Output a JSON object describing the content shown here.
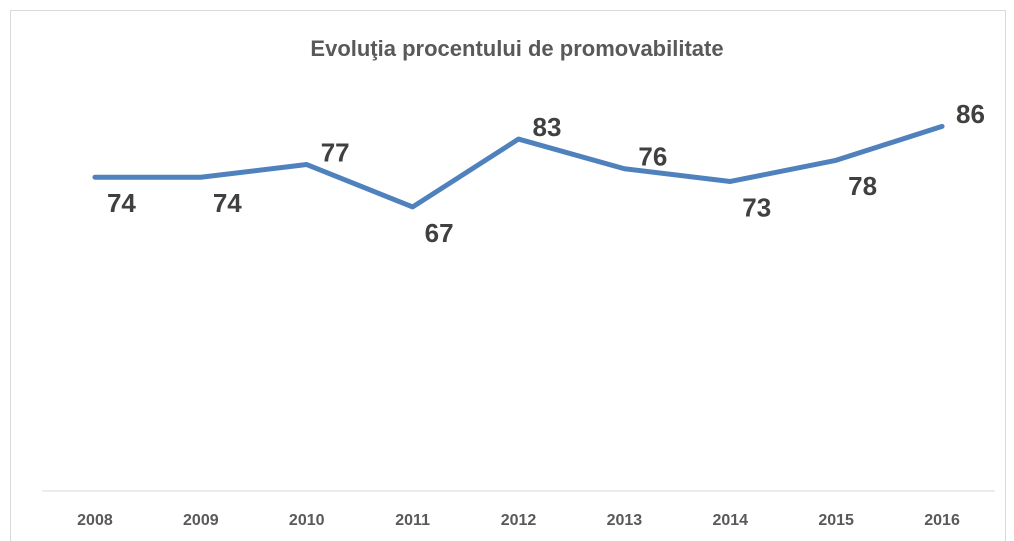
{
  "chart_data": {
    "type": "line",
    "title": "Evoluţia procentului de promovabilitate",
    "categories": [
      "2008",
      "2009",
      "2010",
      "2011",
      "2012",
      "2013",
      "2014",
      "2015",
      "2016"
    ],
    "values": [
      74,
      74,
      77,
      67,
      83,
      76,
      73,
      78,
      86
    ],
    "color": "#4f81bd",
    "ylim": [
      0,
      100
    ],
    "grid": false
  }
}
